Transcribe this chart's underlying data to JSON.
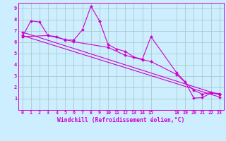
{
  "background_color": "#cceeff",
  "grid_color": "#aacccc",
  "line_color": "#cc00cc",
  "marker_color": "#cc00cc",
  "xlim": [
    -0.5,
    23.5
  ],
  "ylim": [
    0,
    9.5
  ],
  "xticks": [
    0,
    1,
    2,
    3,
    4,
    5,
    6,
    7,
    8,
    9,
    10,
    11,
    12,
    13,
    14,
    15,
    18,
    19,
    20,
    21,
    22,
    23
  ],
  "yticks": [
    1,
    2,
    3,
    4,
    5,
    6,
    7,
    8,
    9
  ],
  "xlabel": "Windchill (Refroidissement éolien,°C)",
  "lines": [
    {
      "x": [
        0,
        1,
        2,
        3,
        4,
        5,
        6,
        7,
        8,
        9,
        10,
        11,
        12,
        13,
        14,
        15,
        18,
        19,
        20,
        21,
        22,
        23
      ],
      "y": [
        6.5,
        7.9,
        7.8,
        6.6,
        6.5,
        6.2,
        6.2,
        7.1,
        9.2,
        7.9,
        5.8,
        5.4,
        5.2,
        4.7,
        4.5,
        6.5,
        3.3,
        2.5,
        1.05,
        1.1,
        1.5,
        1.4
      ]
    },
    {
      "x": [
        0,
        23
      ],
      "y": [
        6.9,
        1.35
      ]
    },
    {
      "x": [
        0,
        23
      ],
      "y": [
        6.6,
        1.15
      ]
    },
    {
      "x": [
        0,
        3,
        5,
        6,
        10,
        12,
        14,
        15,
        18,
        20,
        21,
        22,
        23
      ],
      "y": [
        6.5,
        6.6,
        6.25,
        6.05,
        5.55,
        4.85,
        4.45,
        4.3,
        3.15,
        1.75,
        1.4,
        1.55,
        1.45
      ]
    }
  ]
}
